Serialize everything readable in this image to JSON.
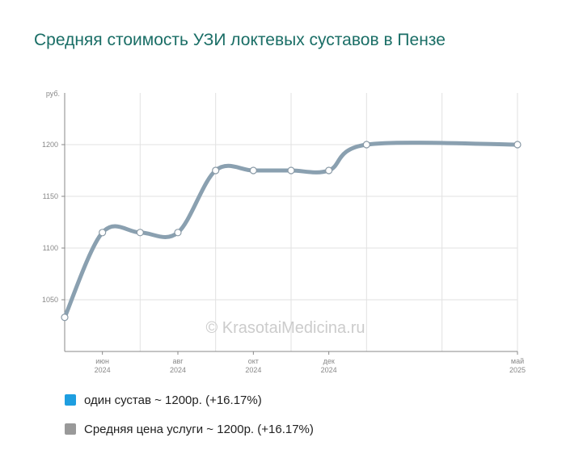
{
  "title": "Средняя стоимость УЗИ локтевых суставов в Пензе",
  "watermark": "© KrasotaiMedicina.ru",
  "legend": [
    {
      "label": "один сустав ~ 1200р. (+16.17%)",
      "color": "#1e9ee0"
    },
    {
      "label": "Средняя цена услуги ~ 1200р. (+16.17%)",
      "color": "#999999"
    }
  ],
  "chart_data": {
    "type": "line",
    "title": "Средняя стоимость УЗИ локтевых суставов в Пензе",
    "ylabel": "руб.",
    "y_ticks": [
      1050,
      1100,
      1150,
      1200
    ],
    "ylim": [
      1000,
      1250
    ],
    "x_ticks": [
      {
        "month": "июн",
        "year": "2024"
      },
      {
        "month": "авг",
        "year": "2024"
      },
      {
        "month": "окт",
        "year": "2024"
      },
      {
        "month": "дек",
        "year": "2024"
      },
      {
        "month": "май",
        "year": "2025"
      }
    ],
    "x": [
      "2024-05",
      "2024-06",
      "2024-07",
      "2024-08",
      "2024-09",
      "2024-10",
      "2024-11",
      "2024-12",
      "2025-01",
      "2025-05"
    ],
    "series": [
      {
        "name": "Средняя цена услуги",
        "color": "#8aa0b0",
        "values": [
          1033,
          1115,
          1115,
          1115,
          1175,
          1175,
          1175,
          1175,
          1200,
          1200
        ]
      }
    ],
    "grid": true,
    "legend_position": "bottom"
  }
}
